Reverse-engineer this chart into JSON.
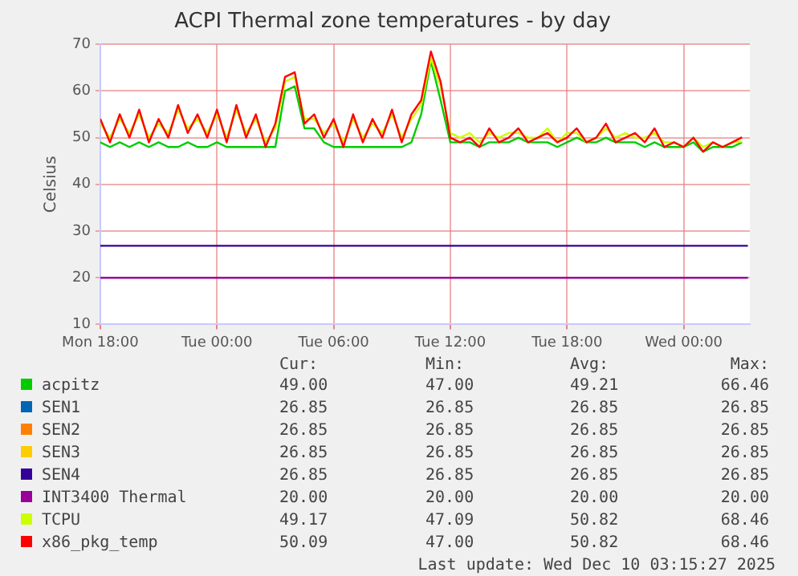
{
  "chart_data": {
    "type": "line",
    "title": "ACPI Thermal zone temperatures - by day",
    "ylabel": "Celsius",
    "xlim": [
      "2025-12-08T18:00",
      "2025-12-10T03:24"
    ],
    "xticks": [
      {
        "value": "2025-12-08T18:00",
        "label": "Mon 18:00"
      },
      {
        "value": "2025-12-09T00:00",
        "label": "Tue 00:00"
      },
      {
        "value": "2025-12-09T06:00",
        "label": "Tue 06:00"
      },
      {
        "value": "2025-12-09T12:00",
        "label": "Tue 12:00"
      },
      {
        "value": "2025-12-09T18:00",
        "label": "Tue 18:00"
      },
      {
        "value": "2025-12-10T00:00",
        "label": "Wed 00:00"
      }
    ],
    "ylim": [
      10,
      70
    ],
    "yticks": [
      10,
      20,
      30,
      40,
      50,
      60,
      70
    ],
    "grid": true,
    "legend": "bottom",
    "marker": "none",
    "line_style": "solid",
    "x": [
      "2025-12-08T18:00",
      "2025-12-08T18:30",
      "2025-12-08T19:00",
      "2025-12-08T19:30",
      "2025-12-08T20:00",
      "2025-12-08T20:30",
      "2025-12-08T21:00",
      "2025-12-08T21:30",
      "2025-12-08T22:00",
      "2025-12-08T22:30",
      "2025-12-08T23:00",
      "2025-12-08T23:30",
      "2025-12-09T00:00",
      "2025-12-09T00:30",
      "2025-12-09T01:00",
      "2025-12-09T01:30",
      "2025-12-09T02:00",
      "2025-12-09T02:30",
      "2025-12-09T03:00",
      "2025-12-09T03:30",
      "2025-12-09T04:00",
      "2025-12-09T04:30",
      "2025-12-09T05:00",
      "2025-12-09T05:30",
      "2025-12-09T06:00",
      "2025-12-09T06:30",
      "2025-12-09T07:00",
      "2025-12-09T07:30",
      "2025-12-09T08:00",
      "2025-12-09T08:30",
      "2025-12-09T09:00",
      "2025-12-09T09:30",
      "2025-12-09T10:00",
      "2025-12-09T10:30",
      "2025-12-09T11:00",
      "2025-12-09T11:30",
      "2025-12-09T12:00",
      "2025-12-09T12:30",
      "2025-12-09T13:00",
      "2025-12-09T13:30",
      "2025-12-09T14:00",
      "2025-12-09T14:30",
      "2025-12-09T15:00",
      "2025-12-09T15:30",
      "2025-12-09T16:00",
      "2025-12-09T16:30",
      "2025-12-09T17:00",
      "2025-12-09T17:30",
      "2025-12-09T18:00",
      "2025-12-09T18:30",
      "2025-12-09T19:00",
      "2025-12-09T19:30",
      "2025-12-09T20:00",
      "2025-12-09T20:30",
      "2025-12-09T21:00",
      "2025-12-09T21:30",
      "2025-12-09T22:00",
      "2025-12-09T22:30",
      "2025-12-09T23:00",
      "2025-12-09T23:30",
      "2025-12-10T00:00",
      "2025-12-10T00:30",
      "2025-12-10T01:00",
      "2025-12-10T01:30",
      "2025-12-10T02:00",
      "2025-12-10T02:30",
      "2025-12-10T03:00"
    ],
    "series": [
      {
        "name": "acpitz",
        "color": "#00cc00",
        "values": [
          49,
          48,
          49,
          48,
          49,
          48,
          49,
          48,
          48,
          49,
          48,
          48,
          49,
          48,
          48,
          48,
          48,
          48,
          48,
          60,
          61,
          52,
          52,
          49,
          48,
          48,
          48,
          48,
          48,
          48,
          48,
          48,
          49,
          55,
          66.46,
          58,
          49,
          49,
          49,
          48,
          49,
          49,
          49,
          50,
          49,
          49,
          49,
          48,
          49,
          50,
          49,
          49,
          50,
          49,
          49,
          49,
          48,
          49,
          48,
          48,
          48,
          49,
          47,
          48,
          48,
          48,
          49
        ]
      },
      {
        "name": "SEN1",
        "color": "#0066b3",
        "values": [
          null,
          null,
          null,
          null,
          null,
          null,
          null,
          null,
          null,
          null,
          null,
          null,
          null,
          null,
          null,
          null,
          null,
          null,
          null,
          null,
          null,
          null,
          null,
          null,
          null,
          null,
          null,
          null,
          null,
          null,
          null,
          null,
          null,
          null,
          null,
          null,
          null,
          null,
          null,
          null,
          null,
          null,
          null,
          null,
          null,
          null,
          null,
          null,
          null,
          null,
          null,
          null,
          null,
          null,
          null,
          null,
          null,
          null,
          null,
          null,
          null,
          null,
          null,
          null,
          null,
          null,
          null
        ]
      },
      {
        "name": "SEN2",
        "color": "#ff8000",
        "values": [
          null,
          null,
          null,
          null,
          null,
          null,
          null,
          null,
          null,
          null,
          null,
          null,
          null,
          null,
          null,
          null,
          null,
          null,
          null,
          null,
          null,
          null,
          null,
          null,
          null,
          null,
          null,
          null,
          null,
          null,
          null,
          null,
          null,
          null,
          null,
          null,
          null,
          null,
          null,
          null,
          null,
          null,
          null,
          null,
          null,
          null,
          null,
          null,
          null,
          null,
          null,
          null,
          null,
          null,
          null,
          null,
          null,
          null,
          null,
          null,
          null,
          null,
          null,
          null,
          null,
          null,
          null
        ]
      },
      {
        "name": "SEN3",
        "color": "#ffcc00",
        "values": [
          null,
          null,
          null,
          null,
          null,
          null,
          null,
          null,
          null,
          null,
          null,
          null,
          null,
          null,
          null,
          null,
          null,
          null,
          null,
          null,
          null,
          null,
          null,
          null,
          null,
          null,
          null,
          null,
          null,
          null,
          null,
          null,
          null,
          null,
          null,
          null,
          null,
          null,
          null,
          null,
          null,
          null,
          null,
          null,
          null,
          null,
          null,
          null,
          null,
          null,
          null,
          null,
          null,
          null,
          null,
          null,
          null,
          null,
          null,
          null,
          null,
          null,
          null,
          null,
          null,
          null,
          null
        ]
      },
      {
        "name": "SEN4",
        "color": "#330099",
        "x": [
          "2025-12-08T18:00",
          "2025-12-10T03:18"
        ],
        "values": [
          26.85,
          26.85
        ]
      },
      {
        "name": "INT3400 Thermal",
        "color": "#990099",
        "x": [
          "2025-12-08T18:00",
          "2025-12-10T03:18"
        ],
        "values": [
          20,
          20
        ]
      },
      {
        "name": "TCPU",
        "color": "#ccff00",
        "values": [
          53,
          50,
          54,
          51,
          55,
          50,
          53,
          51,
          56,
          52,
          54,
          51,
          55,
          50,
          56,
          51,
          54,
          49,
          52,
          62,
          63,
          54,
          54,
          51,
          53,
          49,
          54,
          50,
          53,
          51,
          55,
          50,
          54,
          57,
          67,
          61,
          51,
          50,
          51,
          49,
          51,
          50,
          51,
          51,
          50,
          50,
          52,
          49,
          51,
          51,
          49,
          50,
          52,
          50,
          51,
          50,
          50,
          51,
          49,
          49,
          48,
          50,
          48,
          49,
          48,
          49,
          49.17
        ]
      },
      {
        "name": "x86_pkg_temp",
        "color": "#ff0000",
        "values": [
          54,
          49,
          55,
          50,
          56,
          49,
          54,
          50,
          57,
          51,
          55,
          50,
          56,
          49,
          57,
          50,
          55,
          48,
          53,
          63,
          64,
          53,
          55,
          50,
          54,
          48,
          55,
          49,
          54,
          50,
          56,
          49,
          55,
          58,
          68.46,
          62,
          50,
          49,
          50,
          48,
          52,
          49,
          50,
          52,
          49,
          50,
          51,
          49,
          50,
          52,
          49,
          50,
          53,
          49,
          50,
          51,
          49,
          52,
          48,
          49,
          48,
          50,
          47,
          49,
          48,
          49,
          50.09
        ]
      }
    ],
    "annotations": [
      "Cur:",
      "Min:",
      "Avg:",
      "Max:",
      "49.00",
      "47.00",
      "49.21",
      "66.46",
      "26.85",
      "26.85",
      "26.85",
      "26.85",
      "26.85",
      "26.85",
      "26.85",
      "26.85",
      "26.85",
      "26.85",
      "26.85",
      "26.85",
      "26.85",
      "26.85",
      "26.85",
      "26.85",
      "20.00",
      "20.00",
      "20.00",
      "20.00",
      "49.17",
      "47.09",
      "50.82",
      "68.46",
      "50.09",
      "47.00",
      "50.82",
      "68.46",
      "Last update: Wed Dec 10 03:15:27 2025"
    ]
  }
}
